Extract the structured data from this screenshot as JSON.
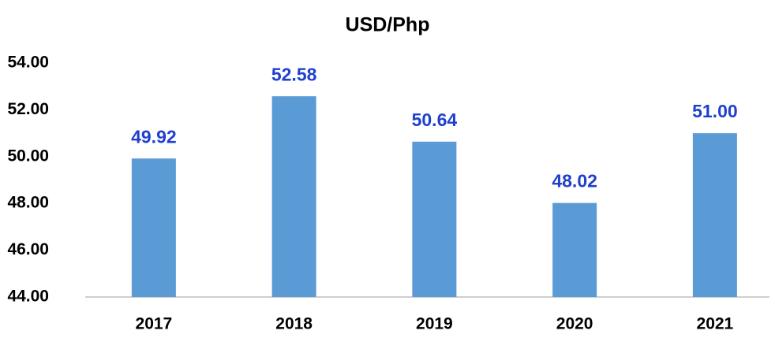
{
  "chart_data": {
    "type": "bar",
    "title": "USD/Php",
    "categories": [
      "2017",
      "2018",
      "2019",
      "2020",
      "2021"
    ],
    "values": [
      49.92,
      52.58,
      50.64,
      48.02,
      51.0
    ],
    "value_labels": [
      "49.92",
      "52.58",
      "50.64",
      "48.02",
      "51.00"
    ],
    "color": "#5b9bd5",
    "label_color": "#1f3fcf",
    "ylim": [
      44,
      54
    ],
    "yticks": [
      {
        "value": 44,
        "label": "44.00"
      },
      {
        "value": 46,
        "label": "46.00"
      },
      {
        "value": 48,
        "label": "48.00"
      },
      {
        "value": 50,
        "label": "50.00"
      },
      {
        "value": 52,
        "label": "52.00"
      },
      {
        "value": 54,
        "label": "54.00"
      }
    ],
    "grid": false
  }
}
